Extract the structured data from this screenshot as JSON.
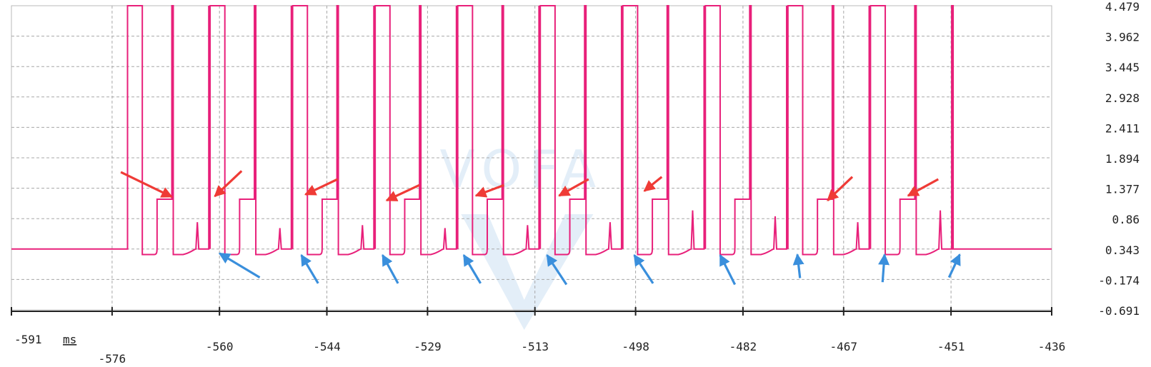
{
  "chart_data": {
    "type": "line",
    "title": "",
    "xlabel": "ms",
    "ylabel": "",
    "xlim": [
      -591,
      -436
    ],
    "ylim": [
      -0.691,
      4.479
    ],
    "grid": true,
    "x_ticks": [
      {
        "value": -591,
        "label": "-591"
      },
      {
        "value": -576,
        "label": "-576"
      },
      {
        "value": -560,
        "label": "-560"
      },
      {
        "value": -544,
        "label": "-544"
      },
      {
        "value": -529,
        "label": "-529"
      },
      {
        "value": -513,
        "label": "-513"
      },
      {
        "value": -498,
        "label": "-498"
      },
      {
        "value": -482,
        "label": "-482"
      },
      {
        "value": -467,
        "label": "-467"
      },
      {
        "value": -451,
        "label": "-451"
      },
      {
        "value": -436,
        "label": "-436"
      }
    ],
    "y_ticks": [
      {
        "value": 4.479,
        "label": "4.479"
      },
      {
        "value": 3.962,
        "label": "3.962"
      },
      {
        "value": 3.445,
        "label": "3.445"
      },
      {
        "value": 2.928,
        "label": "2.928"
      },
      {
        "value": 2.411,
        "label": "2.411"
      },
      {
        "value": 1.894,
        "label": "1.894"
      },
      {
        "value": 1.377,
        "label": "1.377"
      },
      {
        "value": 0.86,
        "label": "0.86"
      },
      {
        "value": 0.343,
        "label": "0.343"
      },
      {
        "value": -0.174,
        "label": "-0.174"
      },
      {
        "value": -0.691,
        "label": "-0.691"
      }
    ],
    "series": [
      {
        "color": "#e8207a",
        "baseline": 0.343,
        "high": 4.479,
        "low": 0.25,
        "step_level": 1.19,
        "start_x": -573.7,
        "period": 12.3,
        "pulses": [
          {
            "rise_x": -573.7,
            "drop_x": -571.5,
            "step_start_x": -569.3,
            "step_end_x": -567.1,
            "spike_x": -563.3,
            "spike_peak": 0.8
          },
          {
            "rise_x": -561.4,
            "drop_x": -559.2,
            "step_start_x": -557.0,
            "step_end_x": -554.8,
            "spike_x": -551.0,
            "spike_peak": 0.7
          },
          {
            "rise_x": -549.1,
            "drop_x": -546.9,
            "step_start_x": -544.7,
            "step_end_x": -542.5,
            "spike_x": -538.7,
            "spike_peak": 0.75
          },
          {
            "rise_x": -536.8,
            "drop_x": -534.6,
            "step_start_x": -532.4,
            "step_end_x": -530.2,
            "spike_x": -526.4,
            "spike_peak": 0.7
          },
          {
            "rise_x": -524.5,
            "drop_x": -522.3,
            "step_start_x": -520.1,
            "step_end_x": -517.9,
            "spike_x": -514.1,
            "spike_peak": 0.75
          },
          {
            "rise_x": -512.2,
            "drop_x": -510.0,
            "step_start_x": -507.8,
            "step_end_x": -505.6,
            "spike_x": -501.8,
            "spike_peak": 0.8
          },
          {
            "rise_x": -499.9,
            "drop_x": -497.7,
            "step_start_x": -495.5,
            "step_end_x": -493.3,
            "spike_x": -489.5,
            "spike_peak": 1.0
          },
          {
            "rise_x": -487.6,
            "drop_x": -485.4,
            "step_start_x": -483.2,
            "step_end_x": -481.0,
            "spike_x": -477.2,
            "spike_peak": 0.9
          },
          {
            "rise_x": -475.3,
            "drop_x": -473.1,
            "step_start_x": -470.9,
            "step_end_x": -468.7,
            "spike_x": -464.9,
            "spike_peak": 0.8
          },
          {
            "rise_x": -463.0,
            "drop_x": -460.8,
            "step_start_x": -458.6,
            "step_end_x": -456.4,
            "spike_x": -452.6,
            "spike_peak": 1.0
          }
        ]
      }
    ],
    "annotations": {
      "red_arrows": [
        {
          "from": [
            -574.7,
            1.65
          ],
          "to": [
            -567.1,
            1.23
          ]
        },
        {
          "from": [
            -556.7,
            1.67
          ],
          "to": [
            -560.7,
            1.24
          ]
        },
        {
          "from": [
            -542.4,
            1.53
          ],
          "to": [
            -547.2,
            1.27
          ]
        },
        {
          "from": [
            -530.2,
            1.43
          ],
          "to": [
            -535.1,
            1.17
          ]
        },
        {
          "from": [
            -517.6,
            1.43
          ],
          "to": [
            -521.8,
            1.25
          ]
        },
        {
          "from": [
            -505.0,
            1.53
          ],
          "to": [
            -509.4,
            1.25
          ]
        },
        {
          "from": [
            -494.1,
            1.57
          ],
          "to": [
            -496.7,
            1.33
          ]
        },
        {
          "from": [
            -465.7,
            1.57
          ],
          "to": [
            -469.4,
            1.17
          ]
        },
        {
          "from": [
            -452.9,
            1.53
          ],
          "to": [
            -457.4,
            1.25
          ]
        }
      ],
      "blue_arrows": [
        {
          "from": [
            -554.0,
            -0.14
          ],
          "to": [
            -560.0,
            0.27
          ]
        },
        {
          "from": [
            -545.3,
            -0.24
          ],
          "to": [
            -547.8,
            0.24
          ]
        },
        {
          "from": [
            -533.4,
            -0.24
          ],
          "to": [
            -535.7,
            0.24
          ]
        },
        {
          "from": [
            -521.1,
            -0.24
          ],
          "to": [
            -523.6,
            0.24
          ]
        },
        {
          "from": [
            -508.3,
            -0.26
          ],
          "to": [
            -511.2,
            0.24
          ]
        },
        {
          "from": [
            -495.4,
            -0.24
          ],
          "to": [
            -498.2,
            0.24
          ]
        },
        {
          "from": [
            -483.2,
            -0.26
          ],
          "to": [
            -485.4,
            0.24
          ]
        },
        {
          "from": [
            -473.5,
            -0.15
          ],
          "to": [
            -473.9,
            0.25
          ]
        },
        {
          "from": [
            -461.2,
            -0.22
          ],
          "to": [
            -460.9,
            0.25
          ]
        },
        {
          "from": [
            -451.3,
            -0.14
          ],
          "to": [
            -449.7,
            0.25
          ]
        }
      ]
    },
    "watermark": "VOFA"
  }
}
